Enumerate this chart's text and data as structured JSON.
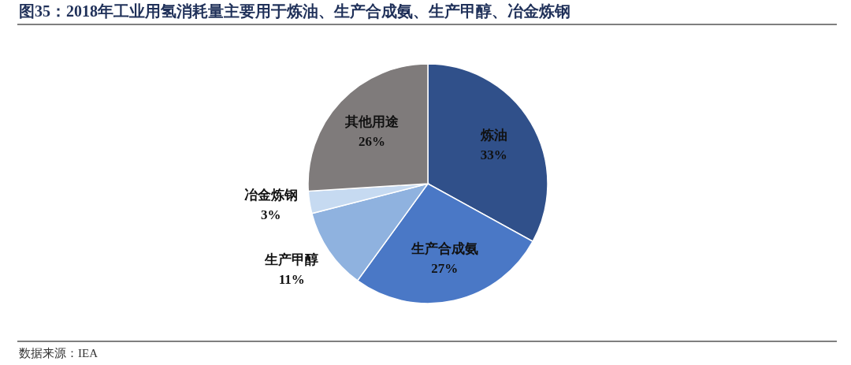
{
  "chart_data": {
    "type": "pie",
    "title": "图35：2018年工业用氢消耗量主要用于炼油、生产合成氨、生产甲醇、冶金炼钢",
    "categories": [
      "炼油",
      "生产合成氨",
      "生产甲醇",
      "冶金炼钢",
      "其他用途"
    ],
    "values": [
      33,
      27,
      11,
      3,
      26
    ],
    "value_labels": [
      "33%",
      "27%",
      "11%",
      "3%",
      "26%"
    ],
    "colors": [
      "#30508a",
      "#4a78c6",
      "#8fb2df",
      "#c6daf1",
      "#7f7b7b"
    ],
    "annotations": [
      "数据来源：IEA"
    ]
  }
}
